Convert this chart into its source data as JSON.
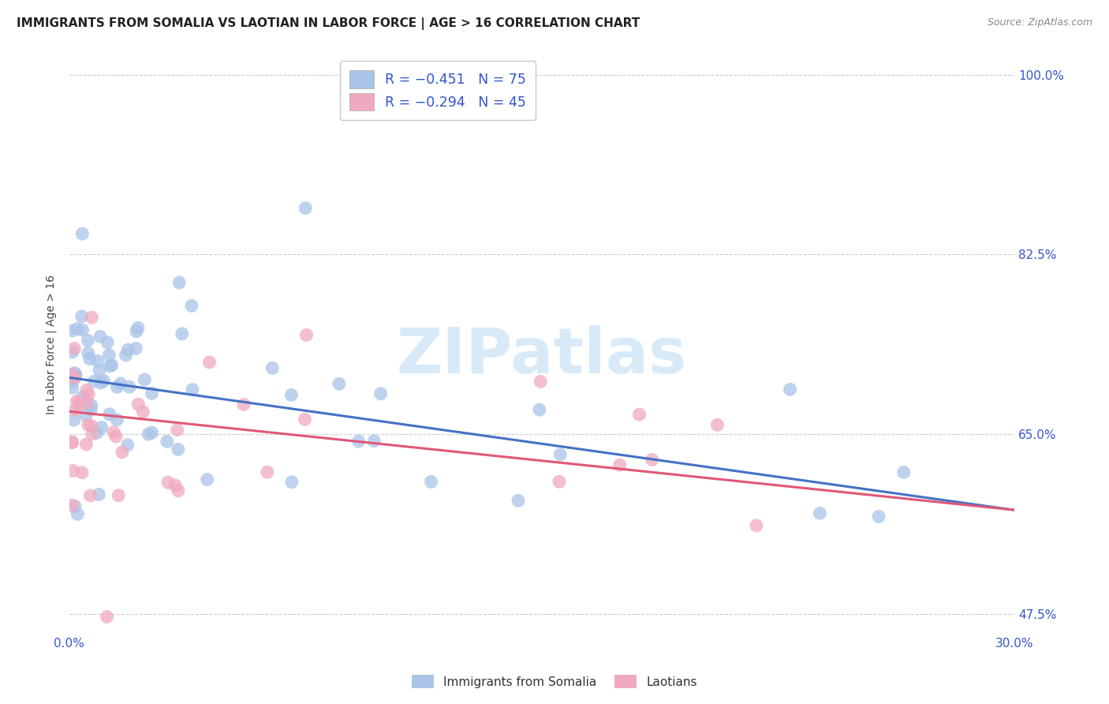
{
  "title": "IMMIGRANTS FROM SOMALIA VS LAOTIAN IN LABOR FORCE | AGE > 16 CORRELATION CHART",
  "source": "Source: ZipAtlas.com",
  "ylabel": "In Labor Force | Age > 16",
  "xlim": [
    0.0,
    0.3
  ],
  "ylim": [
    0.455,
    1.02
  ],
  "yticks": [
    0.475,
    0.65,
    0.825,
    1.0
  ],
  "ytick_labels_right": [
    "47.5%",
    "65.0%",
    "82.5%",
    "100.0%"
  ],
  "xticks": [
    0.0,
    0.05,
    0.1,
    0.15,
    0.2,
    0.25,
    0.3
  ],
  "xtick_labels": [
    "0.0%",
    "",
    "",
    "",
    "",
    "",
    "30.0%"
  ],
  "background_color": "#ffffff",
  "grid_color": "#cccccc",
  "somalia_color": "#aac4e8",
  "somalia_edge_color": "#7aa8d8",
  "somalia_line_color": "#4472c4",
  "laotian_color": "#f0aabf",
  "laotian_edge_color": "#e080a0",
  "laotian_line_color": "#e05878",
  "watermark": "ZIPatlas",
  "watermark_color": "#d8eaf8",
  "legend_label_1": "R = −0.451   N = 75",
  "legend_label_2": "R = −0.294   N = 45",
  "legend_label_somalia": "Immigrants from Somalia",
  "legend_label_laotian": "Laotians",
  "legend_text_color": "#3355cc",
  "somalia_N": 75,
  "laotian_N": 45,
  "som_intercept": 0.705,
  "som_slope": -0.43,
  "lao_intercept": 0.672,
  "lao_slope": -0.32,
  "title_fontsize": 11,
  "source_fontsize": 9,
  "tick_fontsize": 11
}
